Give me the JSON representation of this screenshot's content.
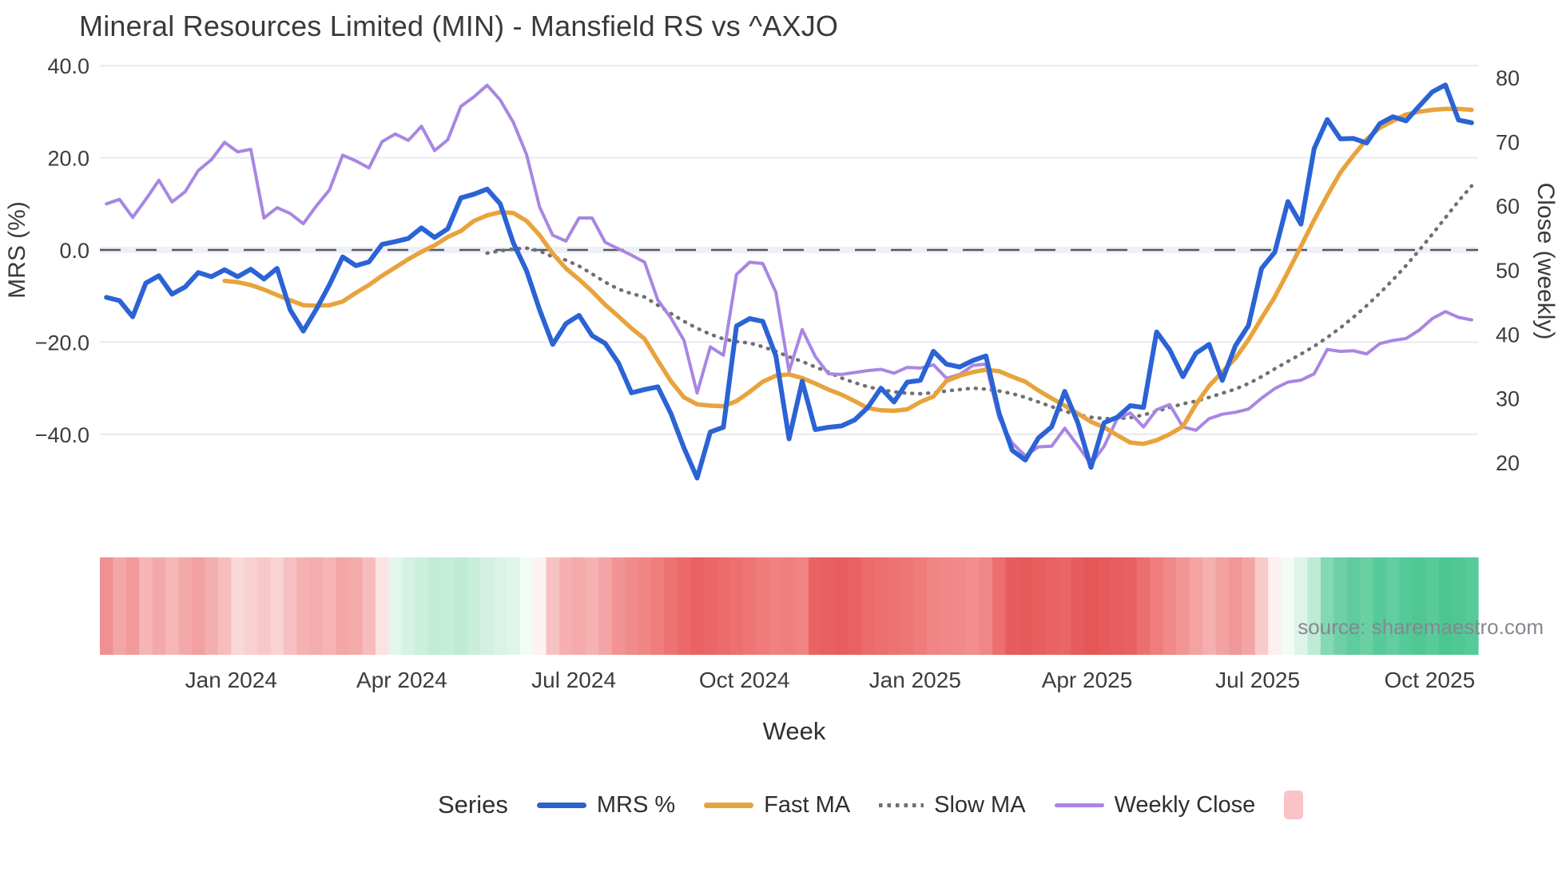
{
  "title": "Mineral Resources Limited (MIN) - Mansfield RS vs ^AXJO",
  "source_note": "source: sharemaestro.com",
  "legend": {
    "title": "Series",
    "items": [
      {
        "label": "MRS %",
        "swatch": "line",
        "color": "#2b63d5"
      },
      {
        "label": "Fast MA",
        "swatch": "line",
        "color": "#e8a33d"
      },
      {
        "label": "Slow MA",
        "swatch": "dotted",
        "color": "#707070"
      },
      {
        "label": "Weekly Close",
        "swatch": "line",
        "color": "#a886e2"
      },
      {
        "label": "",
        "swatch": "square",
        "color": "#f9c3c7"
      }
    ]
  },
  "chart_data": {
    "type": "line",
    "title": "Mineral Resources Limited (MIN) - Mansfield RS vs ^AXJO",
    "xlabel": "Week",
    "ylabel_left": "MRS (%)",
    "ylabel_right": "Close (weekly)",
    "grid": "horizontal-only",
    "zero_line": {
      "value": 0.0,
      "axis": "left",
      "style": "dashed",
      "color": "#54575d",
      "band_color": "#eef0f8"
    },
    "x_ticks": [
      {
        "label": "Jan 2024",
        "week": 9.5
      },
      {
        "label": "Apr 2024",
        "week": 22.5
      },
      {
        "label": "Jul 2024",
        "week": 35.6
      },
      {
        "label": "Oct 2024",
        "week": 48.6
      },
      {
        "label": "Jan 2025",
        "week": 61.6
      },
      {
        "label": "Apr 2025",
        "week": 74.7
      },
      {
        "label": "Jul 2025",
        "week": 87.7
      },
      {
        "label": "Oct 2025",
        "week": 100.8
      }
    ],
    "yleft_ticks": [
      {
        "label": "40.0",
        "value": 40
      },
      {
        "label": "20.0",
        "value": 20
      },
      {
        "label": "0.0",
        "value": 0
      },
      {
        "label": "−20.0",
        "value": -20
      },
      {
        "label": "−40.0",
        "value": -40
      }
    ],
    "yright_ticks": [
      {
        "label": "80",
        "value": 80
      },
      {
        "label": "70",
        "value": 70
      },
      {
        "label": "60",
        "value": 60
      },
      {
        "label": "50",
        "value": 50
      },
      {
        "label": "40",
        "value": 40
      },
      {
        "label": "30",
        "value": 30
      },
      {
        "label": "20",
        "value": 20
      }
    ],
    "ylim_left": [
      -52,
      42
    ],
    "ylim_right": [
      17,
      82
    ],
    "weeks_total": 105,
    "series": [
      {
        "name": "MRS %",
        "axis": "left",
        "color": "#2b63d5",
        "style": "solid",
        "width": 6,
        "start_week": 0,
        "values": [
          -10.3,
          -11.0,
          -14.5,
          -7.2,
          -5.6,
          -9.6,
          -8.0,
          -4.9,
          -5.8,
          -4.3,
          -5.8,
          -4.2,
          -6.3,
          -4.0,
          -13.0,
          -17.6,
          -12.8,
          -7.5,
          -1.5,
          -3.4,
          -2.6,
          1.2,
          1.8,
          2.5,
          4.8,
          2.7,
          4.6,
          11.3,
          12.1,
          13.2,
          10.0,
          1.5,
          -4.5,
          -13.0,
          -20.5,
          -16.0,
          -14.2,
          -18.6,
          -20.3,
          -24.5,
          -31.0,
          -30.3,
          -29.7,
          -35.5,
          -43.0,
          -49.5,
          -39.5,
          -38.5,
          -16.5,
          -14.9,
          -15.5,
          -23.0,
          -41.0,
          -28.5,
          -39.0,
          -38.5,
          -38.2,
          -36.9,
          -34.2,
          -30.0,
          -33.0,
          -28.7,
          -28.3,
          -22.0,
          -24.8,
          -25.4,
          -24.0,
          -23.0,
          -35.4,
          -43.5,
          -45.6,
          -40.8,
          -38.4,
          -30.7,
          -37.5,
          -47.2,
          -37.5,
          -36.3,
          -33.8,
          -34.2,
          -17.8,
          -21.7,
          -27.5,
          -22.4,
          -20.5,
          -28.3,
          -20.8,
          -16.4,
          -4.0,
          -0.5,
          10.5,
          5.6,
          22.0,
          28.3,
          24.1,
          24.2,
          23.2,
          27.4,
          28.9,
          28.0,
          31.2,
          34.3,
          35.8,
          28.2,
          27.6
        ]
      },
      {
        "name": "Fast MA",
        "axis": "left",
        "color": "#e8a33d",
        "style": "solid",
        "width": 5.5,
        "start_week": 9,
        "values": [
          -6.7,
          -7.0,
          -7.6,
          -8.6,
          -9.8,
          -10.9,
          -12.0,
          -12.1,
          -12.0,
          -11.2,
          -9.3,
          -7.6,
          -5.6,
          -3.8,
          -2.0,
          -0.4,
          1.0,
          2.8,
          4.1,
          6.3,
          7.5,
          8.2,
          8.0,
          6.3,
          3.2,
          -0.8,
          -4.0,
          -6.4,
          -9.0,
          -11.9,
          -14.4,
          -17.0,
          -19.3,
          -24.0,
          -28.5,
          -32.0,
          -33.5,
          -33.8,
          -33.9,
          -32.8,
          -30.8,
          -28.6,
          -27.3,
          -27.0,
          -27.8,
          -29.0,
          -30.3,
          -31.4,
          -32.8,
          -34.3,
          -34.8,
          -34.9,
          -34.6,
          -33.0,
          -31.8,
          -28.4,
          -27.3,
          -26.5,
          -26.0,
          -26.3,
          -27.5,
          -28.6,
          -30.5,
          -32.2,
          -33.8,
          -35.5,
          -37.3,
          -38.5,
          -40.2,
          -41.8,
          -42.1,
          -41.3,
          -40.0,
          -38.3,
          -33.5,
          -29.5,
          -26.5,
          -23.5,
          -19.5,
          -14.8,
          -10.2,
          -4.8,
          0.8,
          6.5,
          11.8,
          16.8,
          20.5,
          24.0,
          26.5,
          28.0,
          29.4,
          30.0,
          30.4,
          30.6,
          30.6,
          30.4
        ]
      },
      {
        "name": "Slow MA",
        "axis": "left",
        "color": "#707070",
        "style": "dotted",
        "width": 4.5,
        "start_week": 29,
        "values": [
          -0.7,
          -0.2,
          0.2,
          0.4,
          -0.2,
          -1.5,
          -2.2,
          -3.5,
          -5.2,
          -7.0,
          -8.5,
          -9.5,
          -10.2,
          -12.0,
          -13.8,
          -15.5,
          -17.0,
          -18.3,
          -19.3,
          -19.9,
          -20.2,
          -21.0,
          -22.0,
          -23.2,
          -24.2,
          -25.4,
          -26.5,
          -27.8,
          -28.8,
          -29.7,
          -30.3,
          -30.8,
          -31.1,
          -31.2,
          -31.0,
          -30.6,
          -30.3,
          -30.0,
          -30.2,
          -30.6,
          -31.2,
          -32.0,
          -33.0,
          -34.0,
          -35.0,
          -35.8,
          -36.3,
          -36.6,
          -36.6,
          -36.4,
          -35.8,
          -35.0,
          -34.2,
          -33.4,
          -32.8,
          -32.0,
          -31.1,
          -30.2,
          -29.0,
          -27.5,
          -25.8,
          -24.2,
          -22.6,
          -20.9,
          -19.0,
          -16.9,
          -14.6,
          -12.1,
          -9.4,
          -6.5,
          -3.4,
          -0.1,
          3.4,
          7.0,
          10.6,
          13.9
        ]
      },
      {
        "name": "Weekly Close",
        "axis": "right",
        "color": "#a886e2",
        "style": "solid",
        "width": 4,
        "start_week": 0,
        "values": [
          60.3,
          61.0,
          58.2,
          61.0,
          64.0,
          60.6,
          62.2,
          65.5,
          67.2,
          69.9,
          68.4,
          68.8,
          58.1,
          59.7,
          58.8,
          57.2,
          60.0,
          62.5,
          67.9,
          67.0,
          65.9,
          70.0,
          71.2,
          70.2,
          72.4,
          68.6,
          70.3,
          75.5,
          77.0,
          78.8,
          76.5,
          73.0,
          68.0,
          59.8,
          55.4,
          54.5,
          58.1,
          58.1,
          54.3,
          53.3,
          52.3,
          51.2,
          45.3,
          42.5,
          39.0,
          30.8,
          38.0,
          36.7,
          49.3,
          51.2,
          51.0,
          46.5,
          34.2,
          40.7,
          36.5,
          33.8,
          33.7,
          34.0,
          34.3,
          34.5,
          33.9,
          34.8,
          34.7,
          35.2,
          33.1,
          33.7,
          35.1,
          35.3,
          26.9,
          23.0,
          21.0,
          22.4,
          22.5,
          25.3,
          22.6,
          19.7,
          22.5,
          26.8,
          27.7,
          25.5,
          28.2,
          29.0,
          25.5,
          25.0,
          26.8,
          27.5,
          27.8,
          28.3,
          30.0,
          31.5,
          32.5,
          32.8,
          33.8,
          37.6,
          37.3,
          37.4,
          36.9,
          38.5,
          39.0,
          39.3,
          40.6,
          42.4,
          43.5,
          42.6,
          42.2
        ]
      }
    ],
    "heatmap_strip": {
      "description": "weekly relative-strength heat band, red=weak green=strong",
      "colors": [
        "#f09090",
        "#f4a6a6",
        "#f29b9b",
        "#f6b4b4",
        "#f4a8a8",
        "#f6b6b6",
        "#f4a9a9",
        "#f3a0a0",
        "#f5aeae",
        "#f7bdbd",
        "#fad8d8",
        "#f9d0d0",
        "#f8c8c8",
        "#f9d2d2",
        "#f7bfbf",
        "#f5b0b0",
        "#f5acac",
        "#f6b3b3",
        "#f4a6a6",
        "#f5aaaa",
        "#f7bcbc",
        "#fbe3e3",
        "#e2f6ec",
        "#d5f2e4",
        "#cbefdd",
        "#c3ecd7",
        "#c6edd9",
        "#bfebd4",
        "#c8eeda",
        "#d2f1e2",
        "#daf3e7",
        "#e0f5ea",
        "#f2fbf7",
        "#fdf1f1",
        "#f8c2c2",
        "#f6b0b0",
        "#f5aaaa",
        "#f6b2b2",
        "#f4a4a4",
        "#f29494",
        "#f18c8c",
        "#f08585",
        "#ef7d7d",
        "#ed7272",
        "#ec6969",
        "#ea6262",
        "#eb6666",
        "#ec6b6b",
        "#ed7070",
        "#ee7575",
        "#ef7b7b",
        "#f08181",
        "#ef7e7e",
        "#f08383",
        "#ea6363",
        "#e86060",
        "#e85e5e",
        "#e96262",
        "#eb6a6a",
        "#ec6e6e",
        "#ed7272",
        "#ee7676",
        "#ef7b7b",
        "#f08585",
        "#f08888",
        "#f18b8b",
        "#f18e8e",
        "#f08787",
        "#ec6e6e",
        "#e75d5d",
        "#e65a5a",
        "#e75e5e",
        "#e96363",
        "#ea6666",
        "#e75c5c",
        "#e55757",
        "#e65a5a",
        "#e75e5e",
        "#e86161",
        "#ec6f6f",
        "#ef7d7d",
        "#f18989",
        "#f29595",
        "#f4a3a3",
        "#f5afaf",
        "#f3a2a2",
        "#f19797",
        "#f3a5a5",
        "#f8caca",
        "#fdefef",
        "#f3fbf7",
        "#def4eb",
        "#bfead3",
        "#84d8b4",
        "#6fd0a8",
        "#5fcb9e",
        "#6bcfa4",
        "#58ca9a",
        "#62cda0",
        "#55c998",
        "#4fc895",
        "#59cb9b",
        "#4cc793",
        "#50c896",
        "#56ca99"
      ]
    }
  }
}
